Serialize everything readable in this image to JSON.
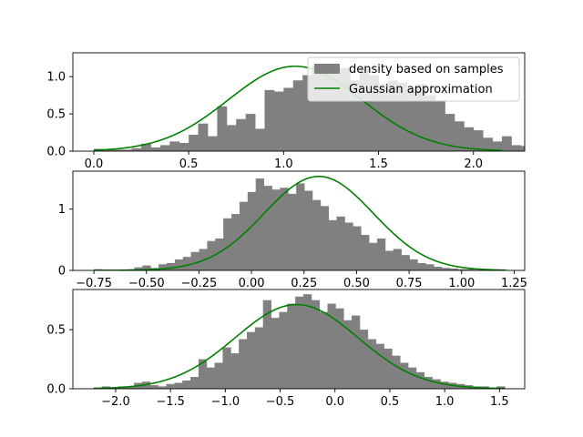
{
  "chart_data": [
    {
      "type": "bar",
      "title": "",
      "xlabel": "",
      "ylabel": "",
      "xlim": [
        -0.11,
        2.27
      ],
      "ylim": [
        0,
        1.32
      ],
      "xticks": [
        0.0,
        0.5,
        1.0,
        1.5,
        2.0
      ],
      "xtick_labels": [
        "0.0",
        "0.5",
        "1.0",
        "1.5",
        "2.0"
      ],
      "yticks": [
        0.0,
        0.5,
        1.0
      ],
      "ytick_labels": [
        "0.0",
        "0.5",
        "1.0"
      ],
      "series": [
        {
          "name": "density based on samples",
          "type": "histogram",
          "color": "#808080",
          "bin_start": 0.0,
          "bin_width": 0.05,
          "values": [
            0.03,
            0.02,
            0.02,
            0.02,
            0.04,
            0.1,
            0.05,
            0.08,
            0.13,
            0.11,
            0.22,
            0.37,
            0.2,
            0.6,
            0.35,
            0.43,
            0.5,
            0.3,
            0.82,
            0.8,
            0.85,
            0.95,
            1.02,
            1.15,
            1.06,
            1.1,
            1.12,
            0.95,
            1.1,
            1.02,
            0.9,
            0.95,
            0.92,
            0.85,
            0.9,
            0.75,
            0.68,
            0.5,
            0.4,
            0.32,
            0.28,
            0.18,
            0.13,
            0.2,
            0.08,
            0.07,
            0.04,
            0.06,
            0.02,
            0.02,
            0.01,
            0.02
          ]
        },
        {
          "name": "Gaussian approximation",
          "type": "line",
          "color": "#008000",
          "mean": 1.06,
          "std": 0.35,
          "x_range": [
            0.0,
            2.15
          ]
        }
      ],
      "legend": {
        "location": "upper-right",
        "entries": [
          "density based on samples",
          "Gaussian approximation"
        ]
      }
    },
    {
      "type": "bar",
      "title": "",
      "xlabel": "",
      "ylabel": "",
      "xlim": [
        -0.85,
        1.3
      ],
      "ylim": [
        0,
        1.62
      ],
      "xticks": [
        -0.75,
        -0.5,
        -0.25,
        0.0,
        0.25,
        0.5,
        0.75,
        1.0,
        1.25
      ],
      "xtick_labels": [
        "−0.75",
        "−0.50",
        "−0.25",
        "0.00",
        "0.25",
        "0.50",
        "0.75",
        "1.00",
        "1.25"
      ],
      "yticks": [
        0,
        1
      ],
      "ytick_labels": [
        "0",
        "1"
      ],
      "series": [
        {
          "name": "",
          "type": "histogram",
          "color": "#808080",
          "bin_start": -0.75,
          "bin_width": 0.0385,
          "values": [
            0.02,
            0.01,
            0.01,
            0.01,
            0.02,
            0.05,
            0.08,
            0.04,
            0.1,
            0.12,
            0.18,
            0.22,
            0.3,
            0.35,
            0.48,
            0.52,
            0.85,
            0.92,
            1.12,
            1.28,
            1.5,
            1.38,
            1.32,
            1.35,
            1.25,
            1.42,
            1.3,
            1.15,
            1.05,
            0.82,
            0.88,
            0.78,
            0.72,
            0.58,
            0.45,
            0.52,
            0.32,
            0.35,
            0.25,
            0.18,
            0.12,
            0.1,
            0.06,
            0.04,
            0.03,
            0.02,
            0.02,
            0.01,
            0.01,
            0.01,
            0.01
          ]
        },
        {
          "name": "",
          "type": "line",
          "color": "#008000",
          "mean": 0.32,
          "std": 0.26,
          "x_range": [
            -0.75,
            1.21
          ]
        }
      ]
    },
    {
      "type": "bar",
      "title": "",
      "xlabel": "",
      "ylabel": "",
      "xlim": [
        -2.39,
        1.73
      ],
      "ylim": [
        0,
        0.84
      ],
      "xticks": [
        -2.0,
        -1.5,
        -1.0,
        -0.5,
        0.0,
        0.5,
        1.0,
        1.5
      ],
      "xtick_labels": [
        "−2.0",
        "−1.5",
        "−1.0",
        "−0.5",
        "0.0",
        "0.5",
        "1.0",
        "1.5"
      ],
      "yticks": [
        0.0,
        0.5
      ],
      "ytick_labels": [
        "0.0",
        "0.5"
      ],
      "series": [
        {
          "name": "",
          "type": "histogram",
          "color": "#808080",
          "bin_start": -2.2,
          "bin_width": 0.0735,
          "values": [
            0.01,
            0.02,
            0.01,
            0.02,
            0.02,
            0.05,
            0.06,
            0.03,
            0.02,
            0.04,
            0.05,
            0.07,
            0.1,
            0.25,
            0.18,
            0.22,
            0.35,
            0.3,
            0.42,
            0.48,
            0.52,
            0.75,
            0.6,
            0.65,
            0.72,
            0.78,
            0.8,
            0.75,
            0.65,
            0.72,
            0.68,
            0.58,
            0.62,
            0.5,
            0.42,
            0.38,
            0.34,
            0.28,
            0.22,
            0.18,
            0.14,
            0.1,
            0.08,
            0.06,
            0.05,
            0.04,
            0.03,
            0.02,
            0.02,
            0.01,
            0.02
          ]
        },
        {
          "name": "",
          "type": "line",
          "color": "#008000",
          "mean": -0.35,
          "std": 0.56,
          "x_range": [
            -2.2,
            1.55
          ]
        }
      ]
    }
  ]
}
